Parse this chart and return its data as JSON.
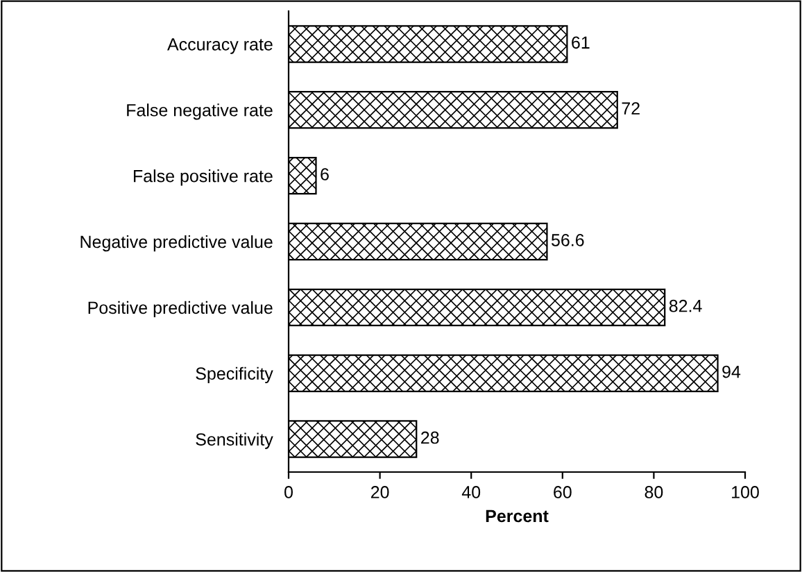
{
  "chart_data": {
    "type": "bar",
    "orientation": "horizontal",
    "xlabel": "Percent",
    "categories": [
      "Accuracy rate",
      "False negative rate",
      "False positive rate",
      "Negative predictive value",
      "Positive predictive value",
      "Specificity",
      "Sensitivity"
    ],
    "values": [
      61,
      72,
      6,
      56.6,
      82.4,
      94,
      28
    ],
    "data_labels": true,
    "xlim": [
      0,
      100
    ],
    "xticks": [
      0,
      20,
      40,
      60,
      80,
      100
    ],
    "grid": false
  }
}
